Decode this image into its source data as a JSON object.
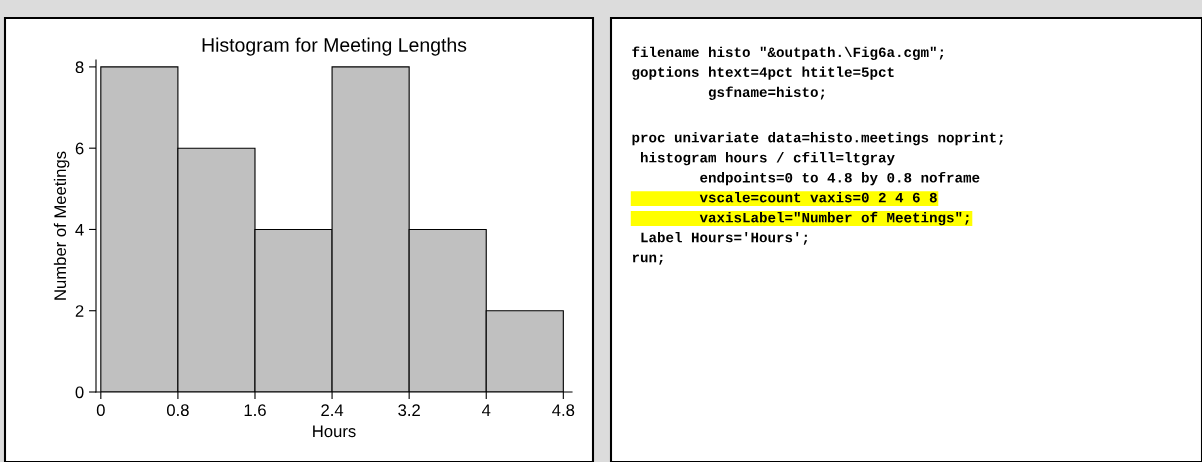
{
  "chart_data": [
    {
      "type": "histogram",
      "title": "Histogram for Meeting Lengths",
      "xlabel": "Hours",
      "ylabel": "Number of Meetings",
      "bins": [
        0,
        0.8,
        1.6,
        2.4,
        3.2,
        4,
        4.8
      ],
      "values": [
        8,
        6,
        4,
        8,
        4,
        2
      ],
      "color": "#c0c0c0",
      "xlim": [
        -0.05,
        4.89
      ],
      "ylim": [
        0,
        8.17
      ],
      "xticks": [
        0,
        0.8,
        1.6,
        2.4,
        3.2,
        4,
        4.8
      ],
      "yticks": [
        0,
        2,
        4,
        6,
        8
      ]
    },
    {
      "type": "other",
      "annotations": [
        "filename histo \"&outpath.\\Fig6a.cgm\";",
        "goptions htext=4pct htitle=5pct",
        "         gsfname=histo;",
        "proc univariate data=histo.meetings noprint;",
        " histogram hours / cfill=ltgray",
        "        endpoints=0 to 4.8 by 0.8 noframe",
        "        vscale=count vaxis=0 2 4 6 8",
        "        vaxisLabel=\"Number of Meetings\";",
        " Label Hours='Hours';",
        "run;"
      ]
    }
  ]
}
